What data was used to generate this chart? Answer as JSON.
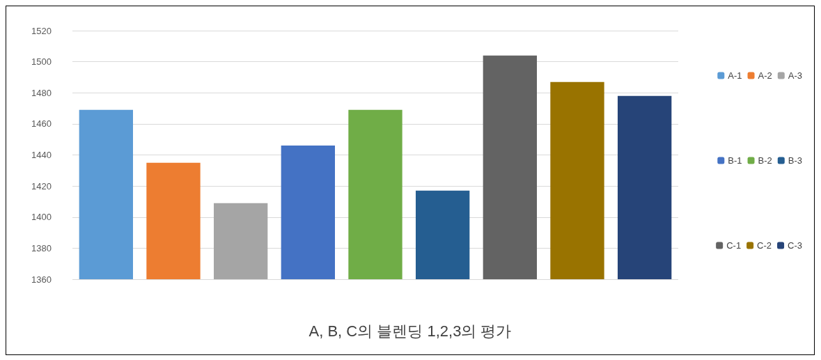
{
  "chart_data": {
    "type": "bar",
    "title": "A, B, C의 블렌딩 1,2,3의 평가",
    "categories": [
      null,
      null,
      null,
      null,
      null,
      null,
      null,
      null,
      null
    ],
    "stacked": true,
    "series": [
      {
        "name": "A-1",
        "color": "#5b9bd5",
        "values": [
          1469,
          null,
          null,
          null,
          null,
          null,
          null,
          null,
          null
        ]
      },
      {
        "name": "A-2",
        "color": "#ed7d31",
        "values": [
          null,
          1435,
          null,
          null,
          null,
          null,
          null,
          null,
          null
        ]
      },
      {
        "name": "A-3",
        "color": "#a5a5a5",
        "values": [
          null,
          null,
          1409,
          null,
          null,
          null,
          null,
          null,
          null
        ]
      },
      {
        "name": "B-1",
        "color": "#4472c4",
        "values": [
          null,
          null,
          null,
          1446,
          null,
          null,
          null,
          null,
          null
        ]
      },
      {
        "name": "B-2",
        "color": "#70ad47",
        "values": [
          null,
          null,
          null,
          null,
          1469,
          null,
          null,
          null,
          null
        ]
      },
      {
        "name": "B-3",
        "color": "#255e91",
        "values": [
          null,
          null,
          null,
          null,
          null,
          1417,
          null,
          null,
          null
        ]
      },
      {
        "name": "C-1",
        "color": "#636363",
        "values": [
          null,
          null,
          null,
          null,
          null,
          null,
          1504,
          null,
          null
        ]
      },
      {
        "name": "C-2",
        "color": "#997300",
        "values": [
          null,
          null,
          null,
          null,
          null,
          null,
          null,
          1487,
          null
        ]
      },
      {
        "name": "C-3",
        "color": "#264478",
        "values": [
          null,
          null,
          null,
          null,
          null,
          null,
          null,
          null,
          1478
        ]
      }
    ],
    "ylim": [
      1360,
      1520
    ],
    "yticks": [
      1360,
      1380,
      1400,
      1420,
      1440,
      1460,
      1480,
      1500,
      1520
    ],
    "grid": "y",
    "legend": "right"
  }
}
